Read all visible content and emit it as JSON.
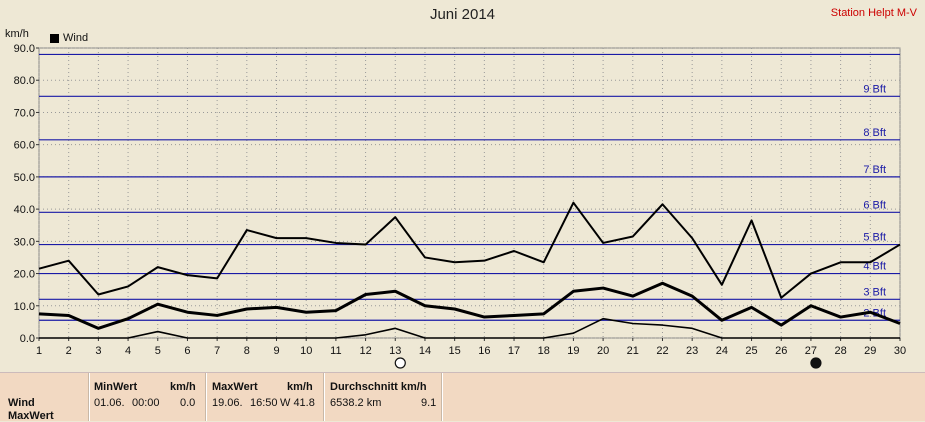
{
  "header": {
    "title": "Juni 2014",
    "station": "Station Helpt M-V",
    "unit": "km/h",
    "legend_label": "Wind"
  },
  "chart_data": {
    "type": "line",
    "title": "Juni 2014",
    "ylabel": "km/h",
    "x": [
      1,
      2,
      3,
      4,
      5,
      6,
      7,
      8,
      9,
      10,
      11,
      12,
      13,
      14,
      15,
      16,
      17,
      18,
      19,
      20,
      21,
      22,
      23,
      24,
      25,
      26,
      27,
      28,
      29,
      30
    ],
    "ylim": [
      0,
      90
    ],
    "y_ticks": [
      "0.0",
      "10.0",
      "20.0",
      "30.0",
      "40.0",
      "50.0",
      "60.0",
      "70.0",
      "80.0",
      "90.0"
    ],
    "series": [
      {
        "name": "Wind",
        "role": "max",
        "values": [
          21.5,
          24,
          13.5,
          16,
          22,
          19.5,
          18.5,
          33.5,
          31,
          31,
          29.5,
          29,
          37.5,
          25,
          23.5,
          24,
          27,
          23.5,
          42,
          29.5,
          31.5,
          41.5,
          31,
          16.5,
          36.5,
          12.5,
          20,
          23.5,
          23.5,
          29
        ]
      },
      {
        "role": "avg",
        "values": [
          7.5,
          7,
          3,
          6,
          10.5,
          8,
          7,
          9,
          9.5,
          8,
          8.5,
          13.5,
          14.5,
          10,
          9,
          6.5,
          7,
          7.5,
          14.5,
          15.5,
          13,
          17,
          13,
          5.5,
          9.5,
          4,
          10,
          6.5,
          8,
          4.5
        ]
      },
      {
        "role": "min",
        "values": [
          0,
          0,
          0,
          0,
          2,
          0,
          0,
          0,
          0,
          0,
          0,
          1,
          3,
          0,
          0,
          0,
          0,
          0,
          1.5,
          6,
          4.5,
          4,
          3,
          0,
          0,
          0,
          0,
          0,
          0,
          0
        ]
      }
    ],
    "beaufort_lines": [
      {
        "label": "2 Bft",
        "value": 5.5
      },
      {
        "label": "3 Bft",
        "value": 12
      },
      {
        "label": "4 Bft",
        "value": 20
      },
      {
        "label": "5 Bft",
        "value": 29
      },
      {
        "label": "6 Bft",
        "value": 39
      },
      {
        "label": "7 Bft",
        "value": 50
      },
      {
        "label": "8 Bft",
        "value": 61.5
      },
      {
        "label": "9 Bft",
        "value": 75
      },
      {
        "label": "",
        "value": 88
      }
    ],
    "moon_phases": [
      {
        "day": 13,
        "phase": "full"
      },
      {
        "day": 27,
        "phase": "new"
      }
    ],
    "grid": true
  },
  "stats": {
    "row_label": "Wind",
    "row_label2": "MaxWert",
    "min_header": "MinWert",
    "min_unit": "km/h",
    "min_date": "01.06.",
    "min_time": "00:00",
    "min_value": "0.0",
    "max_header": "MaxWert",
    "max_unit": "km/h",
    "max_date": "19.06.",
    "max_time": "16:50",
    "max_value": "W 41.8",
    "avg_header": "Durchschnitt km/h",
    "avg_km": "6538.2 km",
    "avg_value": "9.1"
  }
}
